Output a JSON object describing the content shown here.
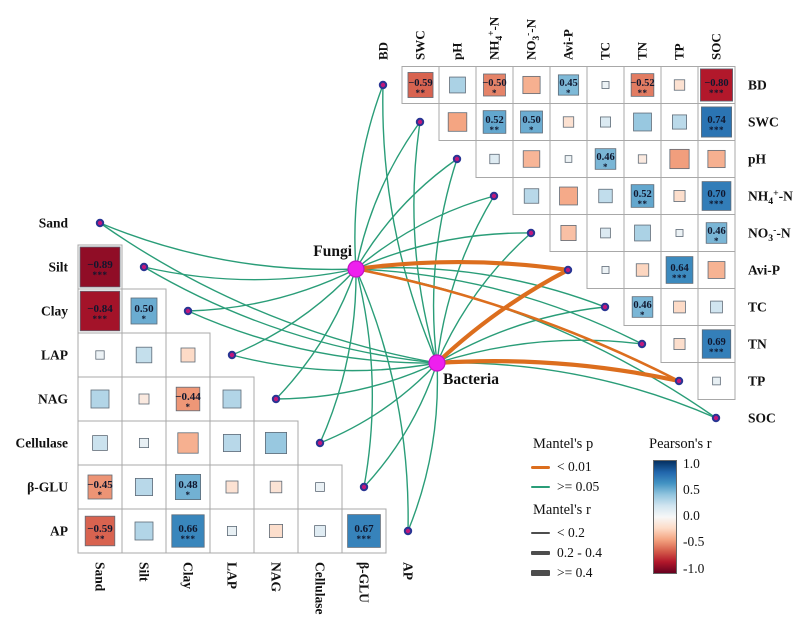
{
  "chart_data": {
    "type": "heatmap",
    "title": "Mantel test network with pairwise Pearson correlation triangles",
    "right_matrix": {
      "orientation": "upper-triangle",
      "variables": [
        "BD",
        "SWC",
        "pH",
        "NH4+-N",
        "NO3--N",
        "Avi-P",
        "TC",
        "TN",
        "TP",
        "SOC"
      ],
      "label_parts": {
        "NH4+-N": [
          [
            "t",
            "NH"
          ],
          [
            "sub",
            "4"
          ],
          [
            "sup",
            "+"
          ],
          [
            "t",
            "-N"
          ]
        ],
        "NO3--N": [
          [
            "t",
            "NO"
          ],
          [
            "sub",
            "3"
          ],
          [
            "sup",
            "-"
          ],
          [
            "t",
            "-N"
          ]
        ]
      },
      "cells": [
        {
          "row": "BD",
          "col": "SWC",
          "r": -0.59,
          "stars": "**"
        },
        {
          "row": "BD",
          "col": "pH",
          "r": 0.32,
          "stars": ""
        },
        {
          "row": "BD",
          "col": "NH4+-N",
          "r": -0.5,
          "stars": "*"
        },
        {
          "row": "BD",
          "col": "NO3--N",
          "r": -0.36,
          "stars": ""
        },
        {
          "row": "BD",
          "col": "Avi-P",
          "r": 0.45,
          "stars": "*"
        },
        {
          "row": "BD",
          "col": "TC",
          "r": 0.06,
          "stars": ""
        },
        {
          "row": "BD",
          "col": "TN",
          "r": -0.52,
          "stars": "**"
        },
        {
          "row": "BD",
          "col": "TP",
          "r": -0.16,
          "stars": ""
        },
        {
          "row": "BD",
          "col": "SOC",
          "r": -0.8,
          "stars": "***"
        },
        {
          "row": "SWC",
          "col": "pH",
          "r": -0.4,
          "stars": ""
        },
        {
          "row": "SWC",
          "col": "NH4+-N",
          "r": 0.52,
          "stars": "**"
        },
        {
          "row": "SWC",
          "col": "NO3--N",
          "r": 0.5,
          "stars": "*"
        },
        {
          "row": "SWC",
          "col": "Avi-P",
          "r": -0.16,
          "stars": ""
        },
        {
          "row": "SWC",
          "col": "TC",
          "r": 0.15,
          "stars": ""
        },
        {
          "row": "SWC",
          "col": "TN",
          "r": 0.38,
          "stars": ""
        },
        {
          "row": "SWC",
          "col": "TP",
          "r": 0.27,
          "stars": ""
        },
        {
          "row": "SWC",
          "col": "SOC",
          "r": 0.74,
          "stars": "***"
        },
        {
          "row": "pH",
          "col": "NH4+-N",
          "r": 0.13,
          "stars": ""
        },
        {
          "row": "pH",
          "col": "NO3--N",
          "r": -0.34,
          "stars": ""
        },
        {
          "row": "pH",
          "col": "Avi-P",
          "r": 0.05,
          "stars": ""
        },
        {
          "row": "pH",
          "col": "TC",
          "r": 0.46,
          "stars": "*"
        },
        {
          "row": "pH",
          "col": "TN",
          "r": -0.1,
          "stars": ""
        },
        {
          "row": "pH",
          "col": "TP",
          "r": -0.42,
          "stars": ""
        },
        {
          "row": "pH",
          "col": "SOC",
          "r": -0.36,
          "stars": ""
        },
        {
          "row": "NH4+-N",
          "col": "NO3--N",
          "r": 0.28,
          "stars": ""
        },
        {
          "row": "NH4+-N",
          "col": "Avi-P",
          "r": -0.38,
          "stars": ""
        },
        {
          "row": "NH4+-N",
          "col": "TC",
          "r": 0.25,
          "stars": ""
        },
        {
          "row": "NH4+-N",
          "col": "TN",
          "r": 0.52,
          "stars": "**"
        },
        {
          "row": "NH4+-N",
          "col": "TP",
          "r": -0.18,
          "stars": ""
        },
        {
          "row": "NH4+-N",
          "col": "SOC",
          "r": 0.7,
          "stars": "***"
        },
        {
          "row": "NO3--N",
          "col": "Avi-P",
          "r": -0.3,
          "stars": ""
        },
        {
          "row": "NO3--N",
          "col": "TC",
          "r": 0.14,
          "stars": ""
        },
        {
          "row": "NO3--N",
          "col": "TN",
          "r": 0.32,
          "stars": ""
        },
        {
          "row": "NO3--N",
          "col": "TP",
          "r": 0.06,
          "stars": ""
        },
        {
          "row": "NO3--N",
          "col": "SOC",
          "r": 0.46,
          "stars": "*"
        },
        {
          "row": "Avi-P",
          "col": "TC",
          "r": 0.06,
          "stars": ""
        },
        {
          "row": "Avi-P",
          "col": "TN",
          "r": -0.22,
          "stars": ""
        },
        {
          "row": "Avi-P",
          "col": "TP",
          "r": 0.64,
          "stars": "***"
        },
        {
          "row": "Avi-P",
          "col": "SOC",
          "r": -0.35,
          "stars": ""
        },
        {
          "row": "TC",
          "col": "TN",
          "r": 0.46,
          "stars": "*"
        },
        {
          "row": "TC",
          "col": "TP",
          "r": -0.2,
          "stars": ""
        },
        {
          "row": "TC",
          "col": "SOC",
          "r": 0.2,
          "stars": ""
        },
        {
          "row": "TN",
          "col": "TP",
          "r": -0.18,
          "stars": ""
        },
        {
          "row": "TN",
          "col": "SOC",
          "r": 0.69,
          "stars": "***"
        },
        {
          "row": "TP",
          "col": "SOC",
          "r": 0.08,
          "stars": ""
        }
      ]
    },
    "left_matrix": {
      "orientation": "lower-triangle",
      "variables": [
        "Sand",
        "Silt",
        "Clay",
        "LAP",
        "NAG",
        "Cellulase",
        "β-GLU",
        "AP"
      ],
      "cells": [
        {
          "row": "Silt",
          "col": "Sand",
          "r": -0.89,
          "stars": "***"
        },
        {
          "row": "Clay",
          "col": "Sand",
          "r": -0.84,
          "stars": "***"
        },
        {
          "row": "Clay",
          "col": "Silt",
          "r": 0.5,
          "stars": "*"
        },
        {
          "row": "LAP",
          "col": "Sand",
          "r": 0.06,
          "stars": ""
        },
        {
          "row": "LAP",
          "col": "Silt",
          "r": 0.24,
          "stars": ""
        },
        {
          "row": "LAP",
          "col": "Clay",
          "r": -0.2,
          "stars": ""
        },
        {
          "row": "NAG",
          "col": "Sand",
          "r": 0.3,
          "stars": ""
        },
        {
          "row": "NAG",
          "col": "Silt",
          "r": -0.1,
          "stars": ""
        },
        {
          "row": "NAG",
          "col": "Clay",
          "r": -0.44,
          "stars": "*"
        },
        {
          "row": "NAG",
          "col": "LAP",
          "r": 0.3,
          "stars": ""
        },
        {
          "row": "Cellulase",
          "col": "Sand",
          "r": 0.22,
          "stars": ""
        },
        {
          "row": "Cellulase",
          "col": "Silt",
          "r": 0.08,
          "stars": ""
        },
        {
          "row": "Cellulase",
          "col": "Clay",
          "r": -0.36,
          "stars": ""
        },
        {
          "row": "Cellulase",
          "col": "LAP",
          "r": 0.28,
          "stars": ""
        },
        {
          "row": "Cellulase",
          "col": "NAG",
          "r": 0.38,
          "stars": ""
        },
        {
          "row": "β-GLU",
          "col": "Sand",
          "r": -0.45,
          "stars": "*"
        },
        {
          "row": "β-GLU",
          "col": "Silt",
          "r": 0.28,
          "stars": ""
        },
        {
          "row": "β-GLU",
          "col": "Clay",
          "r": 0.48,
          "stars": "*"
        },
        {
          "row": "β-GLU",
          "col": "LAP",
          "r": -0.15,
          "stars": ""
        },
        {
          "row": "β-GLU",
          "col": "NAG",
          "r": -0.14,
          "stars": ""
        },
        {
          "row": "β-GLU",
          "col": "Cellulase",
          "r": 0.07,
          "stars": ""
        },
        {
          "row": "AP",
          "col": "Sand",
          "r": -0.59,
          "stars": "**"
        },
        {
          "row": "AP",
          "col": "Silt",
          "r": 0.3,
          "stars": ""
        },
        {
          "row": "AP",
          "col": "Clay",
          "r": 0.66,
          "stars": "***"
        },
        {
          "row": "AP",
          "col": "LAP",
          "r": 0.08,
          "stars": ""
        },
        {
          "row": "AP",
          "col": "NAG",
          "r": -0.18,
          "stars": ""
        },
        {
          "row": "AP",
          "col": "Cellulase",
          "r": 0.12,
          "stars": ""
        },
        {
          "row": "AP",
          "col": "β-GLU",
          "r": 0.67,
          "stars": "***"
        }
      ]
    },
    "network": {
      "hubs": [
        {
          "id": "Fungi",
          "label": "Fungi"
        },
        {
          "id": "Bacteria",
          "label": "Bacteria"
        }
      ],
      "edges": [
        {
          "from": "Fungi",
          "to": "Sand",
          "p": ">= 0.05",
          "r": "< 0.2"
        },
        {
          "from": "Fungi",
          "to": "Silt",
          "p": ">= 0.05",
          "r": "< 0.2"
        },
        {
          "from": "Fungi",
          "to": "Clay",
          "p": ">= 0.05",
          "r": "< 0.2"
        },
        {
          "from": "Fungi",
          "to": "LAP",
          "p": ">= 0.05",
          "r": "< 0.2"
        },
        {
          "from": "Fungi",
          "to": "NAG",
          "p": ">= 0.05",
          "r": "< 0.2"
        },
        {
          "from": "Fungi",
          "to": "Cellulase",
          "p": ">= 0.05",
          "r": "< 0.2"
        },
        {
          "from": "Fungi",
          "to": "β-GLU",
          "p": ">= 0.05",
          "r": "< 0.2"
        },
        {
          "from": "Fungi",
          "to": "AP",
          "p": ">= 0.05",
          "r": "< 0.2"
        },
        {
          "from": "Fungi",
          "to": "BD",
          "p": ">= 0.05",
          "r": "< 0.2"
        },
        {
          "from": "Fungi",
          "to": "SWC",
          "p": ">= 0.05",
          "r": "< 0.2"
        },
        {
          "from": "Fungi",
          "to": "pH",
          "p": ">= 0.05",
          "r": "< 0.2"
        },
        {
          "from": "Fungi",
          "to": "NH4+-N",
          "p": ">= 0.05",
          "r": "< 0.2"
        },
        {
          "from": "Fungi",
          "to": "NO3--N",
          "p": ">= 0.05",
          "r": "< 0.2"
        },
        {
          "from": "Fungi",
          "to": "TC",
          "p": ">= 0.05",
          "r": "< 0.2"
        },
        {
          "from": "Fungi",
          "to": "TN",
          "p": ">= 0.05",
          "r": "< 0.2"
        },
        {
          "from": "Fungi",
          "to": "SOC",
          "p": ">= 0.05",
          "r": "< 0.2"
        },
        {
          "from": "Fungi",
          "to": "Avi-P",
          "p": "< 0.01",
          "r": ">= 0.4"
        },
        {
          "from": "Fungi",
          "to": "TP",
          "p": "< 0.01",
          "r": "0.2 - 0.4"
        },
        {
          "from": "Bacteria",
          "to": "Sand",
          "p": ">= 0.05",
          "r": "< 0.2"
        },
        {
          "from": "Bacteria",
          "to": "Silt",
          "p": ">= 0.05",
          "r": "< 0.2"
        },
        {
          "from": "Bacteria",
          "to": "Clay",
          "p": ">= 0.05",
          "r": "< 0.2"
        },
        {
          "from": "Bacteria",
          "to": "LAP",
          "p": ">= 0.05",
          "r": "< 0.2"
        },
        {
          "from": "Bacteria",
          "to": "NAG",
          "p": ">= 0.05",
          "r": "< 0.2"
        },
        {
          "from": "Bacteria",
          "to": "Cellulase",
          "p": ">= 0.05",
          "r": "< 0.2"
        },
        {
          "from": "Bacteria",
          "to": "β-GLU",
          "p": ">= 0.05",
          "r": "< 0.2"
        },
        {
          "from": "Bacteria",
          "to": "AP",
          "p": ">= 0.05",
          "r": "< 0.2"
        },
        {
          "from": "Bacteria",
          "to": "BD",
          "p": ">= 0.05",
          "r": "< 0.2"
        },
        {
          "from": "Bacteria",
          "to": "SWC",
          "p": ">= 0.05",
          "r": "< 0.2"
        },
        {
          "from": "Bacteria",
          "to": "pH",
          "p": ">= 0.05",
          "r": "< 0.2"
        },
        {
          "from": "Bacteria",
          "to": "NH4+-N",
          "p": ">= 0.05",
          "r": "< 0.2"
        },
        {
          "from": "Bacteria",
          "to": "NO3--N",
          "p": ">= 0.05",
          "r": "< 0.2"
        },
        {
          "from": "Bacteria",
          "to": "TC",
          "p": ">= 0.05",
          "r": "< 0.2"
        },
        {
          "from": "Bacteria",
          "to": "TN",
          "p": ">= 0.05",
          "r": "< 0.2"
        },
        {
          "from": "Bacteria",
          "to": "SOC",
          "p": ">= 0.05",
          "r": "< 0.2"
        },
        {
          "from": "Bacteria",
          "to": "Avi-P",
          "p": "< 0.01",
          "r": ">= 0.4"
        },
        {
          "from": "Bacteria",
          "to": "TP",
          "p": "< 0.01",
          "r": ">= 0.4"
        }
      ]
    }
  },
  "legend": {
    "mantel_p": {
      "title": "Mantel's p",
      "items": [
        {
          "label": "< 0.01",
          "color": "#dc6e1e"
        },
        {
          "label": ">= 0.05",
          "color": "#2a9d78"
        }
      ]
    },
    "mantel_r": {
      "title": "Mantel's r",
      "items": [
        {
          "label": "< 0.2"
        },
        {
          "label": "0.2 - 0.4"
        },
        {
          "label": ">= 0.4"
        }
      ]
    },
    "pearson": {
      "title": "Pearson's r",
      "ticks": [
        "1.0",
        "0.5",
        "0.0",
        "-0.5",
        "-1.0"
      ],
      "range": [
        -1,
        1
      ]
    }
  },
  "colors": {
    "mantel_p_low": "#dc6e1e",
    "mantel_p_high": "#2a9d78",
    "mantel_r_line": "#4d4d4d",
    "hub_fill": "#ee1fee",
    "hub_stroke": "#c411c4",
    "dot_fill": "#c0187c",
    "dot_stroke": "#283593",
    "grid": "#a8a8a8",
    "square_stroke": "#5f6b77",
    "cell_text": "#10172e",
    "rdbu": [
      [
        "-1",
        "#67001f"
      ],
      [
        "-0.8",
        "#b2182b"
      ],
      [
        "-0.6",
        "#d6604d"
      ],
      [
        "-0.4",
        "#f4a582"
      ],
      [
        "-0.2",
        "#fddbc7"
      ],
      [
        "0",
        "#f7f7f7"
      ],
      [
        "0.2",
        "#d1e5f0"
      ],
      [
        "0.4",
        "#92c5de"
      ],
      [
        "0.6",
        "#4393c3"
      ],
      [
        "0.8",
        "#2166ac"
      ],
      [
        "1",
        "#053061"
      ]
    ]
  }
}
